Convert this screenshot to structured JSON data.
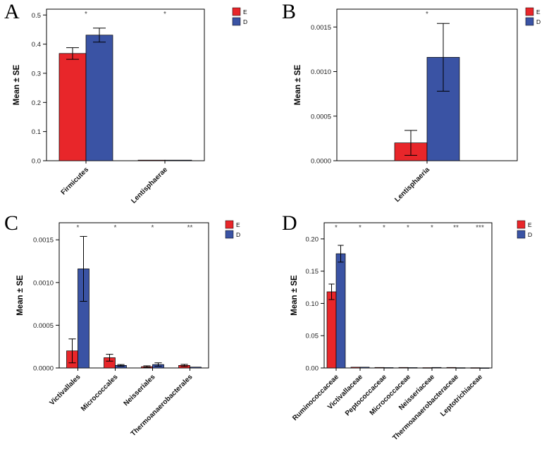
{
  "figure": {
    "background": "#FFFFFF",
    "group_colors": {
      "E": "#E8262A",
      "D": "#3A53A4"
    }
  },
  "chart_data": [
    {
      "panel": "A",
      "type": "bar",
      "title": "",
      "xlabel": "",
      "ylabel": "Mean ± SE",
      "ylim": [
        0,
        0.52
      ],
      "yticks": [
        0.0,
        0.1,
        0.2,
        0.3,
        0.4,
        0.5
      ],
      "ytick_labels": [
        "0.0",
        "0.1",
        "0.2",
        "0.3",
        "0.4",
        "0.5"
      ],
      "categories": [
        "Firmicutes",
        "Lentisphaerae"
      ],
      "series": [
        {
          "name": "E",
          "color": "#E8262A",
          "values": [
            0.368,
            0.002
          ],
          "errors": [
            0.02,
            0
          ]
        },
        {
          "name": "D",
          "color": "#3A53A4",
          "values": [
            0.431,
            0.002
          ],
          "errors": [
            0.024,
            0
          ]
        }
      ],
      "significance": [
        "*",
        "*"
      ],
      "legend": [
        "E",
        "D"
      ],
      "legend_position": "top-right",
      "grid": false
    },
    {
      "panel": "B",
      "type": "bar",
      "title": "",
      "xlabel": "",
      "ylabel": "Mean ± SE",
      "ylim": [
        0,
        0.0017
      ],
      "yticks": [
        0.0,
        0.0005,
        0.001,
        0.0015
      ],
      "ytick_labels": [
        "0.0000",
        "0.0005",
        "0.0010",
        "0.0015"
      ],
      "categories": [
        "Lentisphaeria"
      ],
      "series": [
        {
          "name": "E",
          "color": "#E8262A",
          "values": [
            0.0002
          ],
          "errors": [
            0.00014
          ]
        },
        {
          "name": "D",
          "color": "#3A53A4",
          "values": [
            0.00116
          ],
          "errors": [
            0.00038
          ]
        }
      ],
      "significance": [
        "*"
      ],
      "legend": [
        "E",
        "D"
      ],
      "legend_position": "top-right",
      "grid": false
    },
    {
      "panel": "C",
      "type": "bar",
      "title": "",
      "xlabel": "",
      "ylabel": "Mean ± SE",
      "ylim": [
        0,
        0.0017
      ],
      "yticks": [
        0.0,
        0.0005,
        0.001,
        0.0015
      ],
      "ytick_labels": [
        "0.0000",
        "0.0005",
        "0.0010",
        "0.0015"
      ],
      "categories": [
        "Victivallales",
        "Micrococcales",
        "Neisseriales",
        "Thermoanaerobacterales"
      ],
      "series": [
        {
          "name": "E",
          "color": "#E8262A",
          "values": [
            0.0002,
            0.00012,
            1.5e-05,
            3e-05
          ],
          "errors": [
            0.00014,
            4e-05,
            1e-05,
            1.2e-05
          ]
        },
        {
          "name": "D",
          "color": "#3A53A4",
          "values": [
            0.00116,
            3e-05,
            4e-05,
            1e-05
          ],
          "errors": [
            0.00038,
            1e-05,
            2e-05,
            5e-06
          ]
        }
      ],
      "significance": [
        "*",
        "*",
        "*",
        "**"
      ],
      "legend": [
        "E",
        "D"
      ],
      "legend_position": "top-right",
      "grid": false
    },
    {
      "panel": "D",
      "type": "bar",
      "title": "",
      "xlabel": "",
      "ylabel": "Mean ± SE",
      "ylim": [
        0,
        0.225
      ],
      "yticks": [
        0.0,
        0.05,
        0.1,
        0.15,
        0.2
      ],
      "ytick_labels": [
        "0.00",
        "0.05",
        "0.10",
        "0.15",
        "0.20"
      ],
      "categories": [
        "Ruminococcaceae",
        "Victivallaceae",
        "Peptococcaceae",
        "Micrococcaceae",
        "Neisseriaceae",
        "Thermoanaerobacteraceae",
        "Leptotrichiaceae"
      ],
      "series": [
        {
          "name": "E",
          "color": "#E8262A",
          "values": [
            0.118,
            0.0012,
            0.0008,
            0.0008,
            0.0005,
            0.0008,
            0.0004
          ],
          "errors": [
            0.012,
            0,
            0,
            0,
            0,
            0,
            0
          ]
        },
        {
          "name": "D",
          "color": "#3A53A4",
          "values": [
            0.177,
            0.0012,
            0.0006,
            0.0006,
            0.0008,
            0.0004,
            0.0002
          ],
          "errors": [
            0.013,
            0,
            0,
            0,
            0,
            0,
            0
          ]
        }
      ],
      "significance": [
        "*",
        "*",
        "*",
        "*",
        "*",
        "**",
        "***"
      ],
      "legend": [
        "E",
        "D"
      ],
      "legend_position": "top-right",
      "grid": false
    }
  ]
}
